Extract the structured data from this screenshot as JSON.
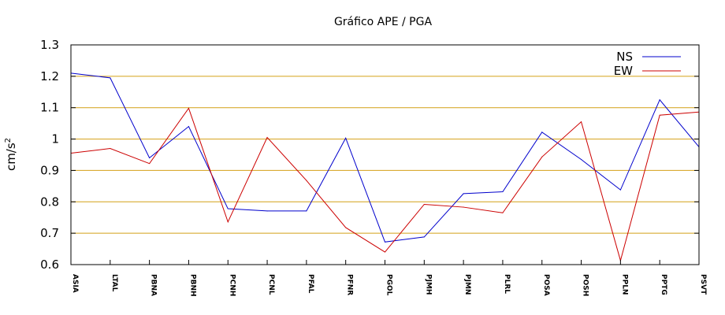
{
  "chart_data": {
    "type": "line",
    "title": "Gráfico  APE / PGA",
    "ylabel": "cm/s",
    "ylabel_superscript": "2",
    "xlabel": "",
    "ylim": [
      0.6,
      1.3
    ],
    "yticks": [
      0.6,
      0.7,
      0.8,
      0.9,
      1,
      1.1,
      1.2,
      1.3
    ],
    "ytick_labels": [
      "0.6",
      "0.7",
      "0.8",
      "0.9",
      "1",
      "1.1",
      "1.2",
      "1.3"
    ],
    "grid": "horizontal",
    "grid_color": "#d4a017",
    "legend_position": "top-right",
    "categories": [
      "ASIA",
      "LTAL",
      "PBNA",
      "PBNH",
      "PCNH",
      "PCNL",
      "PFAL",
      "PFNR",
      "PGOL",
      "PJMH",
      "PJMN",
      "PLRL",
      "POSA",
      "POSH",
      "PPLN",
      "PPTG",
      "PSVT"
    ],
    "series": [
      {
        "name": "NS",
        "color": "#0000cc",
        "values": [
          1.21,
          1.195,
          0.94,
          1.04,
          0.778,
          0.771,
          0.771,
          1.003,
          0.672,
          0.688,
          0.826,
          0.832,
          1.022,
          0.935,
          0.838,
          1.125,
          0.975
        ]
      },
      {
        "name": "EW",
        "color": "#cc0000",
        "values": [
          0.955,
          0.97,
          0.922,
          1.098,
          0.736,
          1.005,
          0.868,
          0.718,
          0.64,
          0.792,
          0.783,
          0.765,
          0.943,
          1.055,
          0.613,
          1.076,
          1.086
        ]
      }
    ]
  }
}
